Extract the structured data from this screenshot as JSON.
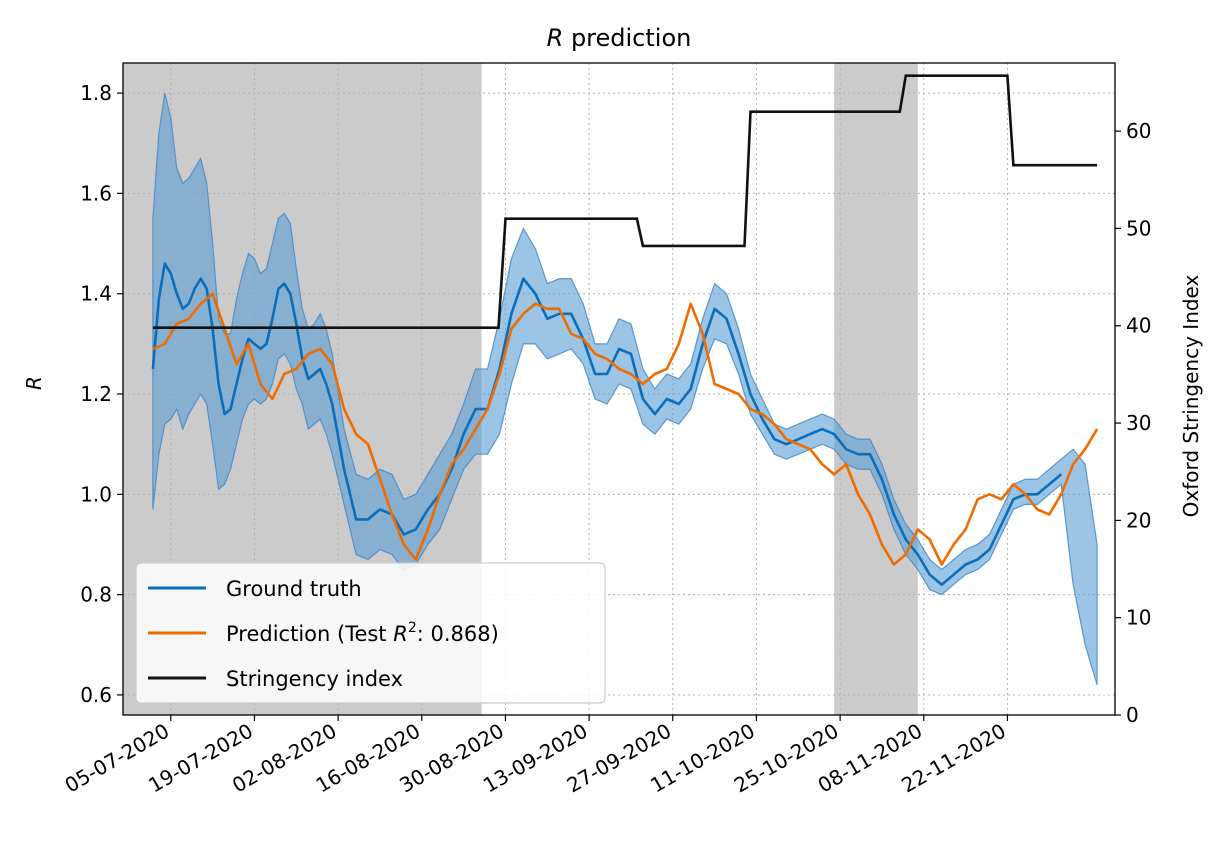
{
  "chart_data": {
    "type": "line",
    "title": "R prediction",
    "title_italic": "R",
    "title_rest": " prediction",
    "ylabel": "R",
    "y2label": "Oxford Stringency Index",
    "xlabel": "",
    "x_start": "2020-06-27",
    "x_end": "2020-12-10",
    "ylim": [
      0.56,
      1.86
    ],
    "y2lim": [
      0,
      67
    ],
    "yticks": [
      0.6,
      0.8,
      1.0,
      1.2,
      1.4,
      1.6,
      1.8
    ],
    "y2ticks": [
      0,
      10,
      20,
      30,
      40,
      50,
      60
    ],
    "xtick_dates": [
      "2020-07-05",
      "2020-07-19",
      "2020-08-02",
      "2020-08-16",
      "2020-08-30",
      "2020-09-13",
      "2020-09-27",
      "2020-10-11",
      "2020-10-25",
      "2020-11-08",
      "2020-11-22"
    ],
    "xtick_labels": [
      "05-07-2020",
      "19-07-2020",
      "02-08-2020",
      "16-08-2020",
      "30-08-2020",
      "13-09-2020",
      "27-09-2020",
      "11-10-2020",
      "25-10-2020",
      "08-11-2020",
      "22-11-2020"
    ],
    "grid": true,
    "legend_position": "lower-left",
    "shaded_periods": [
      {
        "start": "2020-06-27",
        "end": "2020-08-26"
      },
      {
        "start": "2020-10-24",
        "end": "2020-11-07"
      }
    ],
    "series": [
      {
        "name": "Ground truth",
        "color": "#0a6ebd",
        "band_color": "#5a9fd4",
        "dates": [
          "2020-07-02",
          "2020-07-03",
          "2020-07-04",
          "2020-07-05",
          "2020-07-06",
          "2020-07-07",
          "2020-07-08",
          "2020-07-09",
          "2020-07-10",
          "2020-07-11",
          "2020-07-12",
          "2020-07-13",
          "2020-07-14",
          "2020-07-15",
          "2020-07-16",
          "2020-07-17",
          "2020-07-18",
          "2020-07-19",
          "2020-07-20",
          "2020-07-21",
          "2020-07-22",
          "2020-07-23",
          "2020-07-24",
          "2020-07-25",
          "2020-07-26",
          "2020-07-27",
          "2020-07-28",
          "2020-07-29",
          "2020-07-30",
          "2020-07-31",
          "2020-08-01",
          "2020-08-03",
          "2020-08-05",
          "2020-08-07",
          "2020-08-09",
          "2020-08-11",
          "2020-08-13",
          "2020-08-15",
          "2020-08-17",
          "2020-08-19",
          "2020-08-21",
          "2020-08-23",
          "2020-08-25",
          "2020-08-27",
          "2020-08-29",
          "2020-08-31",
          "2020-09-02",
          "2020-09-04",
          "2020-09-06",
          "2020-09-08",
          "2020-09-10",
          "2020-09-12",
          "2020-09-14",
          "2020-09-16",
          "2020-09-18",
          "2020-09-20",
          "2020-09-22",
          "2020-09-24",
          "2020-09-26",
          "2020-09-28",
          "2020-09-30",
          "2020-10-02",
          "2020-10-04",
          "2020-10-06",
          "2020-10-08",
          "2020-10-10",
          "2020-10-12",
          "2020-10-14",
          "2020-10-16",
          "2020-10-18",
          "2020-10-20",
          "2020-10-22",
          "2020-10-24",
          "2020-10-26",
          "2020-10-28",
          "2020-10-30",
          "2020-11-01",
          "2020-11-03",
          "2020-11-05",
          "2020-11-07",
          "2020-11-09",
          "2020-11-11",
          "2020-11-13",
          "2020-11-15",
          "2020-11-17",
          "2020-11-19",
          "2020-11-21",
          "2020-11-23",
          "2020-11-25",
          "2020-11-27",
          "2020-11-29",
          "2020-12-01",
          "2020-12-03",
          "2020-12-05",
          "2020-12-07"
        ],
        "values": [
          1.25,
          1.39,
          1.46,
          1.44,
          1.4,
          1.37,
          1.38,
          1.41,
          1.43,
          1.41,
          1.33,
          1.22,
          1.16,
          1.17,
          1.22,
          1.27,
          1.31,
          1.3,
          1.29,
          1.3,
          1.35,
          1.41,
          1.42,
          1.4,
          1.34,
          1.27,
          1.23,
          1.24,
          1.25,
          1.22,
          1.18,
          1.05,
          0.95,
          0.95,
          0.97,
          0.96,
          0.92,
          0.93,
          0.97,
          1.0,
          1.05,
          1.12,
          1.17,
          1.17,
          1.25,
          1.36,
          1.43,
          1.4,
          1.35,
          1.36,
          1.36,
          1.31,
          1.24,
          1.24,
          1.29,
          1.28,
          1.19,
          1.16,
          1.19,
          1.18,
          1.21,
          1.3,
          1.37,
          1.35,
          1.28,
          1.2,
          1.15,
          1.11,
          1.1,
          1.11,
          1.12,
          1.13,
          1.12,
          1.09,
          1.08,
          1.08,
          1.03,
          0.96,
          0.91,
          0.88,
          0.84,
          0.82,
          0.84,
          0.86,
          0.87,
          0.89,
          0.94,
          0.99,
          1.0,
          1.0,
          1.02,
          1.04,
          null,
          null,
          null
        ],
        "lower": [
          0.97,
          1.08,
          1.14,
          1.15,
          1.17,
          1.13,
          1.16,
          1.18,
          1.2,
          1.18,
          1.1,
          1.01,
          1.02,
          1.05,
          1.1,
          1.15,
          1.18,
          1.19,
          1.18,
          1.19,
          1.22,
          1.27,
          1.28,
          1.26,
          1.21,
          1.18,
          1.13,
          1.14,
          1.15,
          1.12,
          1.08,
          0.98,
          0.88,
          0.87,
          0.89,
          0.88,
          0.85,
          0.86,
          0.9,
          0.93,
          0.99,
          1.05,
          1.08,
          1.08,
          1.12,
          1.22,
          1.3,
          1.3,
          1.27,
          1.28,
          1.29,
          1.26,
          1.19,
          1.18,
          1.22,
          1.21,
          1.14,
          1.12,
          1.15,
          1.14,
          1.17,
          1.25,
          1.31,
          1.3,
          1.24,
          1.16,
          1.12,
          1.08,
          1.07,
          1.08,
          1.09,
          1.1,
          1.09,
          1.06,
          1.05,
          1.05,
          1.0,
          0.93,
          0.88,
          0.85,
          0.81,
          0.8,
          0.82,
          0.84,
          0.85,
          0.87,
          0.92,
          0.97,
          0.98,
          0.98,
          1.0,
          1.02,
          0.82,
          0.7,
          0.62
        ],
        "upper": [
          1.55,
          1.72,
          1.8,
          1.75,
          1.65,
          1.62,
          1.63,
          1.65,
          1.67,
          1.62,
          1.5,
          1.35,
          1.32,
          1.32,
          1.39,
          1.44,
          1.48,
          1.47,
          1.44,
          1.45,
          1.5,
          1.55,
          1.56,
          1.54,
          1.45,
          1.37,
          1.33,
          1.34,
          1.36,
          1.33,
          1.28,
          1.13,
          1.04,
          1.03,
          1.05,
          1.04,
          0.99,
          1.0,
          1.04,
          1.08,
          1.12,
          1.18,
          1.25,
          1.25,
          1.35,
          1.47,
          1.53,
          1.49,
          1.42,
          1.43,
          1.43,
          1.38,
          1.3,
          1.3,
          1.35,
          1.34,
          1.25,
          1.21,
          1.24,
          1.23,
          1.26,
          1.35,
          1.42,
          1.4,
          1.33,
          1.24,
          1.19,
          1.14,
          1.13,
          1.14,
          1.15,
          1.16,
          1.15,
          1.12,
          1.11,
          1.11,
          1.06,
          0.99,
          0.94,
          0.91,
          0.87,
          0.85,
          0.87,
          0.89,
          0.9,
          0.92,
          0.97,
          1.02,
          1.03,
          1.03,
          1.05,
          1.07,
          1.09,
          1.06,
          0.9
        ]
      },
      {
        "name": "Prediction (Test R²: 0.868)",
        "legend_prefix": "Prediction (Test ",
        "legend_var": "R",
        "legend_sup": "2",
        "legend_suffix": ": 0.868)",
        "color": "#ef6c00",
        "dates": [
          "2020-07-02",
          "2020-07-04",
          "2020-07-06",
          "2020-07-08",
          "2020-07-10",
          "2020-07-12",
          "2020-07-14",
          "2020-07-16",
          "2020-07-18",
          "2020-07-20",
          "2020-07-22",
          "2020-07-24",
          "2020-07-26",
          "2020-07-28",
          "2020-07-30",
          "2020-08-01",
          "2020-08-03",
          "2020-08-05",
          "2020-08-07",
          "2020-08-09",
          "2020-08-11",
          "2020-08-13",
          "2020-08-15",
          "2020-08-17",
          "2020-08-19",
          "2020-08-21",
          "2020-08-23",
          "2020-08-25",
          "2020-08-27",
          "2020-08-29",
          "2020-08-31",
          "2020-09-02",
          "2020-09-04",
          "2020-09-06",
          "2020-09-08",
          "2020-09-10",
          "2020-09-12",
          "2020-09-14",
          "2020-09-16",
          "2020-09-18",
          "2020-09-20",
          "2020-09-22",
          "2020-09-24",
          "2020-09-26",
          "2020-09-28",
          "2020-09-30",
          "2020-10-02",
          "2020-10-04",
          "2020-10-06",
          "2020-10-08",
          "2020-10-10",
          "2020-10-12",
          "2020-10-14",
          "2020-10-16",
          "2020-10-18",
          "2020-10-20",
          "2020-10-22",
          "2020-10-24",
          "2020-10-26",
          "2020-10-28",
          "2020-10-30",
          "2020-11-01",
          "2020-11-03",
          "2020-11-05",
          "2020-11-07",
          "2020-11-09",
          "2020-11-11",
          "2020-11-13",
          "2020-11-15",
          "2020-11-17",
          "2020-11-19",
          "2020-11-21",
          "2020-11-23",
          "2020-11-25",
          "2020-11-27",
          "2020-11-29",
          "2020-12-01",
          "2020-12-03",
          "2020-12-05",
          "2020-12-07"
        ],
        "values": [
          1.29,
          1.3,
          1.34,
          1.35,
          1.38,
          1.4,
          1.33,
          1.26,
          1.3,
          1.22,
          1.19,
          1.24,
          1.25,
          1.28,
          1.29,
          1.26,
          1.17,
          1.12,
          1.1,
          1.03,
          0.96,
          0.9,
          0.87,
          0.93,
          1.0,
          1.06,
          1.09,
          1.13,
          1.17,
          1.24,
          1.33,
          1.36,
          1.38,
          1.37,
          1.37,
          1.32,
          1.31,
          1.28,
          1.27,
          1.25,
          1.24,
          1.22,
          1.24,
          1.25,
          1.3,
          1.38,
          1.32,
          1.22,
          1.21,
          1.2,
          1.17,
          1.16,
          1.14,
          1.11,
          1.1,
          1.09,
          1.06,
          1.04,
          1.06,
          1.0,
          0.96,
          0.9,
          0.86,
          0.88,
          0.93,
          0.91,
          0.86,
          0.9,
          0.93,
          0.99,
          1.0,
          0.99,
          1.02,
          1.0,
          0.97,
          0.96,
          1.0,
          1.06,
          1.09,
          1.13
        ]
      },
      {
        "name": "Stringency index",
        "axis": "right",
        "color": "#111111",
        "steps": [
          {
            "date": "2020-07-02",
            "value": 39.8
          },
          {
            "date": "2020-08-30",
            "value": 51.0
          },
          {
            "date": "2020-09-22",
            "value": 48.2
          },
          {
            "date": "2020-10-10",
            "value": 62.0
          },
          {
            "date": "2020-11-05",
            "value": 65.7
          },
          {
            "date": "2020-11-23",
            "value": 56.5
          }
        ],
        "end_date": "2020-12-07"
      }
    ]
  }
}
